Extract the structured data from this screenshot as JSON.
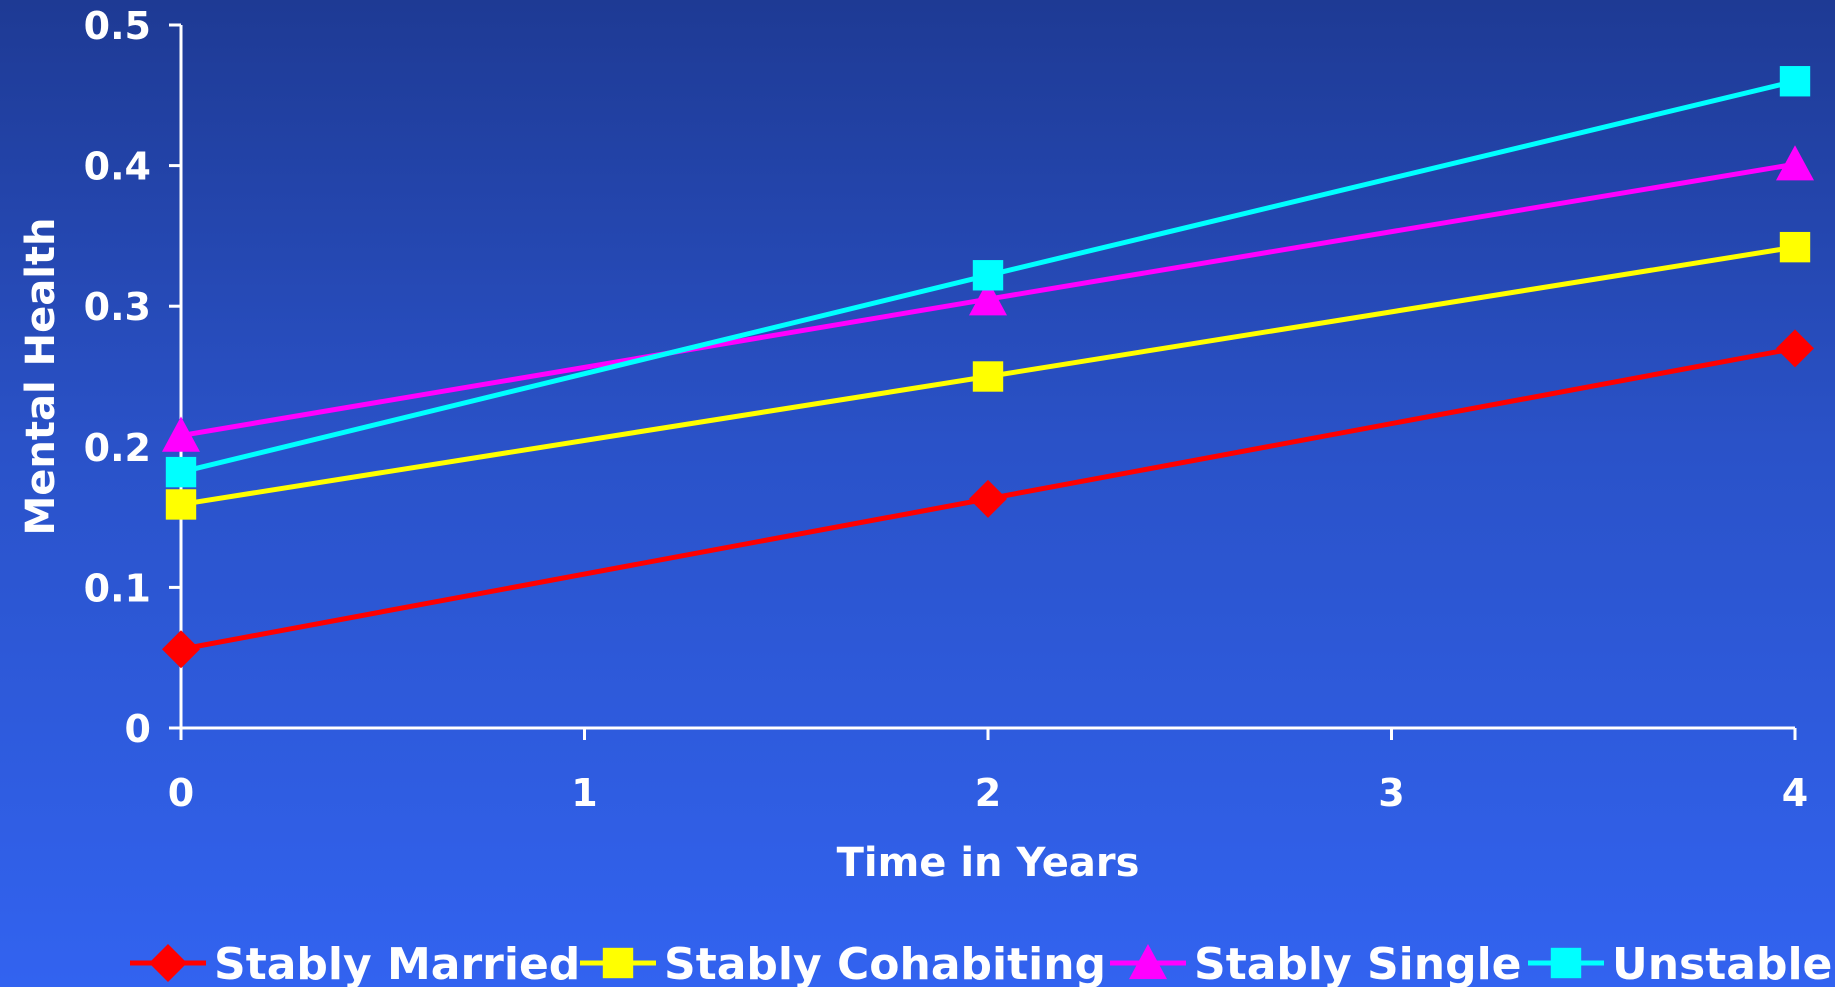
{
  "chart_data": {
    "type": "line",
    "title": "",
    "xlabel": "Time in Years",
    "ylabel": "Mental Health",
    "xlim": [
      0,
      4
    ],
    "ylim": [
      0,
      0.5
    ],
    "x_ticks": [
      "0",
      "1",
      "2",
      "3",
      "4"
    ],
    "y_ticks": [
      "0",
      "0.1",
      "0.2",
      "0.3",
      "0.4",
      "0.5"
    ],
    "x": [
      0,
      2,
      4
    ],
    "grid": false,
    "legend_position": "bottom",
    "series": [
      {
        "name": "Stably Married",
        "values": [
          0.056,
          0.163,
          0.27
        ],
        "color": "#ff0000",
        "marker": "diamond"
      },
      {
        "name": "Stably Cohabiting",
        "values": [
          0.159,
          0.25,
          0.342
        ],
        "color": "#ffff00",
        "marker": "square"
      },
      {
        "name": "Stably Single",
        "values": [
          0.208,
          0.305,
          0.401
        ],
        "color": "#ff00ff",
        "marker": "triangle"
      },
      {
        "name": "Unstable",
        "values": [
          0.182,
          0.322,
          0.46
        ],
        "color": "#00ffff",
        "marker": "square"
      }
    ]
  },
  "colors": {
    "axis": "#ffffff",
    "text": "#ffffff"
  }
}
